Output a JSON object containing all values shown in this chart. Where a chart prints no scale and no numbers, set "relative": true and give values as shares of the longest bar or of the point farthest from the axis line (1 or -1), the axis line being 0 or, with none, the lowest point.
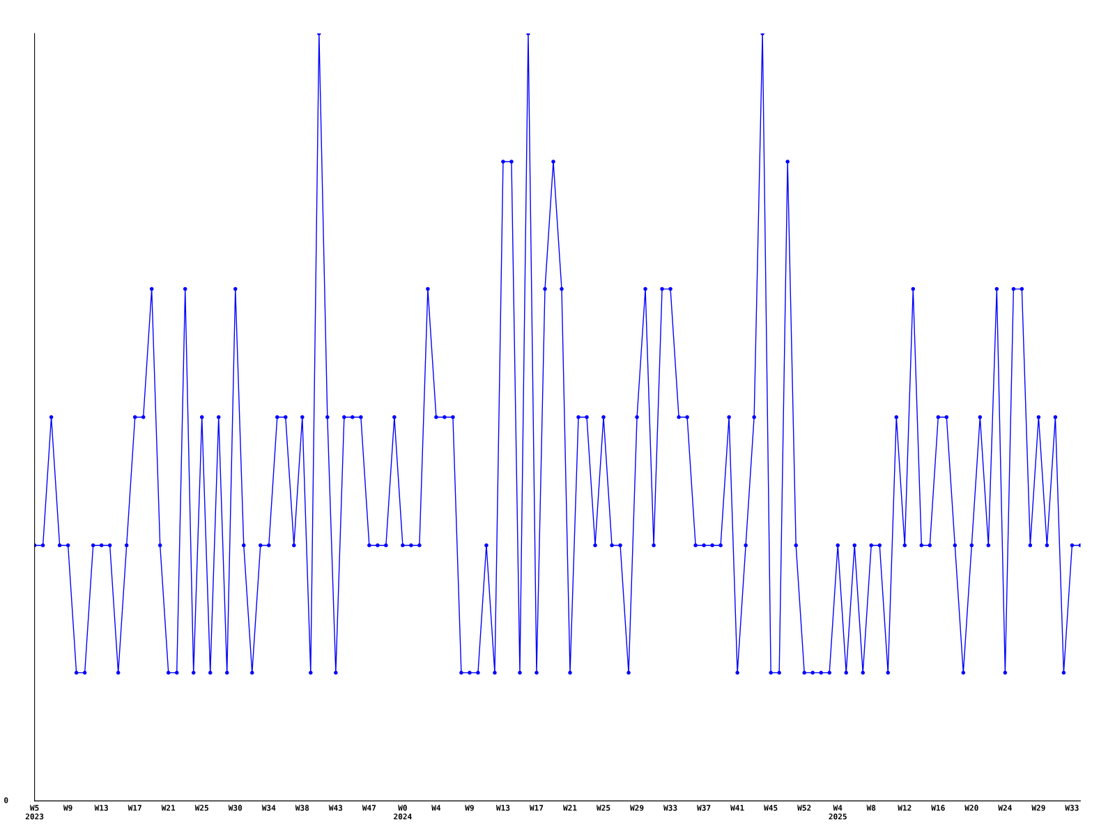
{
  "chart_data": {
    "type": "line",
    "relative": true,
    "color": "#0000ff",
    "marker": "circle",
    "line_style": "solid",
    "grid": false,
    "legend": false,
    "categories": [
      "W5\n2023",
      null,
      null,
      null,
      "W9",
      null,
      null,
      null,
      "W13",
      null,
      null,
      null,
      "W17",
      null,
      null,
      null,
      "W21",
      null,
      null,
      null,
      "W25",
      null,
      null,
      null,
      "W30",
      null,
      null,
      null,
      "W34",
      null,
      null,
      null,
      "W38",
      null,
      null,
      null,
      "W43",
      null,
      null,
      null,
      "W47",
      null,
      null,
      null,
      "W0\n2024",
      null,
      null,
      null,
      "W4",
      null,
      null,
      null,
      "W9",
      null,
      null,
      null,
      "W13",
      null,
      null,
      null,
      "W17",
      null,
      null,
      null,
      "W21",
      null,
      null,
      null,
      "W25",
      null,
      null,
      null,
      "W29",
      null,
      null,
      null,
      "W33",
      null,
      null,
      null,
      "W37",
      null,
      null,
      null,
      "W41",
      null,
      null,
      null,
      "W45",
      null,
      null,
      null,
      "W52",
      null,
      null,
      null,
      "W4\n2025",
      null,
      null,
      null,
      "W8",
      null,
      null,
      null,
      "W12",
      null,
      null,
      null,
      "W16",
      null,
      null,
      null,
      "W20",
      null,
      null,
      null,
      "W24",
      null,
      null,
      null,
      "W29",
      null,
      null,
      null,
      "W33",
      null
    ],
    "values": [
      0.333,
      0.333,
      0.5,
      0.333,
      0.333,
      0.167,
      0.167,
      0.333,
      0.333,
      0.333,
      0.167,
      0.333,
      0.5,
      0.5,
      0.667,
      0.333,
      0.167,
      0.167,
      0.667,
      0.167,
      0.5,
      0.167,
      0.5,
      0.167,
      0.667,
      0.333,
      0.167,
      0.333,
      0.333,
      0.5,
      0.5,
      0.333,
      0.5,
      0.167,
      1,
      0.5,
      0.167,
      0.5,
      0.5,
      0.5,
      0.333,
      0.333,
      0.333,
      0.5,
      0.333,
      0.333,
      0.333,
      0.667,
      0.5,
      0.5,
      0.5,
      0.167,
      0.167,
      0.167,
      0.333,
      0.167,
      0.833,
      0.833,
      0.167,
      1,
      0.167,
      0.667,
      0.833,
      0.667,
      0.167,
      0.5,
      0.5,
      0.333,
      0.5,
      0.333,
      0.333,
      0.167,
      0.5,
      0.667,
      0.333,
      0.667,
      0.667,
      0.5,
      0.5,
      0.333,
      0.333,
      0.333,
      0.333,
      0.5,
      0.167,
      0.333,
      0.5,
      1,
      0.167,
      0.167,
      0.833,
      0.333,
      0.167,
      0.167,
      0.167,
      0.167,
      0.333,
      0.167,
      0.333,
      0.167,
      0.333,
      0.333,
      0.167,
      0.5,
      0.333,
      0.667,
      0.333,
      0.333,
      0.5,
      0.5,
      0.333,
      0.167,
      0.333,
      0.5,
      0.333,
      0.667,
      0.167,
      0.667,
      0.667,
      0.333,
      0.5,
      0.333,
      0.5,
      0.167,
      0.333,
      0.333
    ],
    "annotations": [
      "0"
    ]
  }
}
